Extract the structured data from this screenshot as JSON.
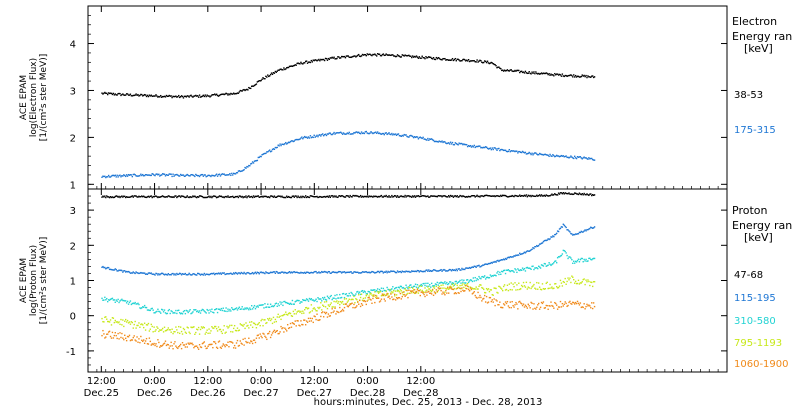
{
  "chart_data": [
    {
      "type": "scatter",
      "ylabel_lines": [
        "ACE EPAM",
        "log(Electron Flux)",
        "[1/(cm²s ster MeV)]"
      ],
      "ylim": [
        0.9,
        4.8
      ],
      "yticks": [
        1,
        2,
        3,
        4
      ],
      "legend_title": [
        "Electron",
        "Energy ran",
        "[keV]"
      ],
      "series": [
        {
          "name": "38-53",
          "color": "#000000",
          "points": [
            [
              0,
              2.95
            ],
            [
              6,
              2.92
            ],
            [
              12,
              2.9
            ],
            [
              18,
              2.88
            ],
            [
              24,
              2.9
            ],
            [
              30,
              2.95
            ],
            [
              33,
              3.05
            ],
            [
              36,
              3.25
            ],
            [
              40,
              3.45
            ],
            [
              45,
              3.6
            ],
            [
              52,
              3.7
            ],
            [
              60,
              3.78
            ],
            [
              66,
              3.76
            ],
            [
              72,
              3.72
            ],
            [
              78,
              3.68
            ],
            [
              84,
              3.65
            ],
            [
              88,
              3.6
            ],
            [
              90,
              3.45
            ],
            [
              96,
              3.4
            ],
            [
              102,
              3.35
            ],
            [
              108,
              3.32
            ],
            [
              111,
              3.3
            ]
          ]
        },
        {
          "name": "175-315",
          "color": "#1f77d4",
          "points": [
            [
              0,
              1.18
            ],
            [
              6,
              1.2
            ],
            [
              12,
              1.22
            ],
            [
              18,
              1.2
            ],
            [
              24,
              1.2
            ],
            [
              30,
              1.23
            ],
            [
              33,
              1.4
            ],
            [
              36,
              1.62
            ],
            [
              40,
              1.85
            ],
            [
              45,
              2.0
            ],
            [
              52,
              2.1
            ],
            [
              60,
              2.12
            ],
            [
              66,
              2.08
            ],
            [
              72,
              2.0
            ],
            [
              78,
              1.9
            ],
            [
              84,
              1.82
            ],
            [
              90,
              1.75
            ],
            [
              96,
              1.68
            ],
            [
              102,
              1.62
            ],
            [
              108,
              1.58
            ],
            [
              111,
              1.55
            ]
          ]
        }
      ]
    },
    {
      "type": "scatter",
      "ylabel_lines": [
        "ACE EPAM",
        "log(Proton Flux)",
        "[1/(cm²s ster MeV)]"
      ],
      "ylim": [
        -1.6,
        3.6
      ],
      "yticks": [
        -1,
        0,
        1,
        2,
        3
      ],
      "legend_title": [
        "Proton",
        "Energy ran",
        "[keV]"
      ],
      "series": [
        {
          "name": "47-68",
          "color": "#000000",
          "points": [
            [
              0,
              3.4
            ],
            [
              20,
              3.4
            ],
            [
              40,
              3.4
            ],
            [
              60,
              3.41
            ],
            [
              80,
              3.41
            ],
            [
              100,
              3.43
            ],
            [
              104,
              3.5
            ],
            [
              108,
              3.48
            ],
            [
              111,
              3.45
            ]
          ]
        },
        {
          "name": "115-195",
          "color": "#1f77d4",
          "points": [
            [
              0,
              1.4
            ],
            [
              6,
              1.25
            ],
            [
              12,
              1.2
            ],
            [
              18,
              1.2
            ],
            [
              24,
              1.2
            ],
            [
              30,
              1.22
            ],
            [
              40,
              1.25
            ],
            [
              50,
              1.25
            ],
            [
              60,
              1.25
            ],
            [
              70,
              1.28
            ],
            [
              80,
              1.32
            ],
            [
              86,
              1.45
            ],
            [
              90,
              1.6
            ],
            [
              96,
              1.85
            ],
            [
              102,
              2.3
            ],
            [
              104,
              2.6
            ],
            [
              106,
              2.3
            ],
            [
              111,
              2.55
            ]
          ]
        },
        {
          "name": "310-580",
          "color": "#22d3d3",
          "points": [
            [
              0,
              0.5
            ],
            [
              6,
              0.4
            ],
            [
              12,
              0.15
            ],
            [
              18,
              0.12
            ],
            [
              24,
              0.15
            ],
            [
              30,
              0.2
            ],
            [
              40,
              0.35
            ],
            [
              50,
              0.5
            ],
            [
              60,
              0.7
            ],
            [
              70,
              0.85
            ],
            [
              80,
              0.95
            ],
            [
              86,
              1.1
            ],
            [
              90,
              1.25
            ],
            [
              96,
              1.35
            ],
            [
              102,
              1.5
            ],
            [
              104,
              1.85
            ],
            [
              106,
              1.55
            ],
            [
              111,
              1.65
            ]
          ]
        },
        {
          "name": "795-1193",
          "color": "#c7e81a",
          "points": [
            [
              0,
              -0.1
            ],
            [
              6,
              -0.2
            ],
            [
              12,
              -0.35
            ],
            [
              18,
              -0.4
            ],
            [
              24,
              -0.4
            ],
            [
              30,
              -0.35
            ],
            [
              36,
              -0.2
            ],
            [
              42,
              0.05
            ],
            [
              48,
              0.25
            ],
            [
              55,
              0.45
            ],
            [
              62,
              0.6
            ],
            [
              70,
              0.75
            ],
            [
              78,
              0.8
            ],
            [
              84,
              0.85
            ],
            [
              88,
              0.7
            ],
            [
              92,
              0.85
            ],
            [
              96,
              0.88
            ],
            [
              102,
              0.85
            ],
            [
              106,
              1.05
            ],
            [
              111,
              0.9
            ]
          ]
        },
        {
          "name": "1060-1900",
          "color": "#f08a1a",
          "points": [
            [
              0,
              -0.5
            ],
            [
              6,
              -0.6
            ],
            [
              12,
              -0.75
            ],
            [
              18,
              -0.85
            ],
            [
              24,
              -0.82
            ],
            [
              30,
              -0.8
            ],
            [
              36,
              -0.6
            ],
            [
              42,
              -0.3
            ],
            [
              48,
              -0.05
            ],
            [
              55,
              0.25
            ],
            [
              62,
              0.5
            ],
            [
              70,
              0.65
            ],
            [
              78,
              0.72
            ],
            [
              82,
              0.78
            ],
            [
              86,
              0.5
            ],
            [
              90,
              0.35
            ],
            [
              96,
              0.3
            ],
            [
              102,
              0.3
            ],
            [
              106,
              0.35
            ],
            [
              111,
              0.3
            ]
          ]
        }
      ]
    }
  ],
  "x_axis": {
    "xlabel": "hours:minutes, Dec. 25, 2013 - Dec. 28, 2013",
    "xlim": [
      -3,
      141
    ],
    "ticks": [
      {
        "x": 0,
        "time": "12:00",
        "date": "Dec.25"
      },
      {
        "x": 12,
        "time": "0:00",
        "date": "Dec.26"
      },
      {
        "x": 24,
        "time": "12:00",
        "date": "Dec.26"
      },
      {
        "x": 36,
        "time": "0:00",
        "date": "Dec.27"
      },
      {
        "x": 48,
        "time": "12:00",
        "date": "Dec.27"
      },
      {
        "x": 60,
        "time": "0:00",
        "date": "Dec.28"
      },
      {
        "x": 72,
        "time": "12:00",
        "date": "Dec.28"
      }
    ]
  }
}
